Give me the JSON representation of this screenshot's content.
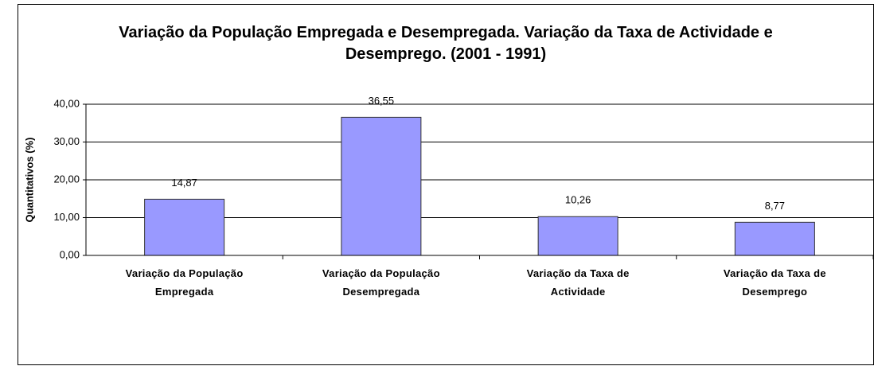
{
  "chart_data": {
    "type": "bar",
    "title": "Variação da População Empregada e Desempregada. Variação da Taxa de Actividade e Desemprego. (2001 - 1991)",
    "y_label": "Quantitativos (%)",
    "categories": [
      "Variação da População Empregada",
      "Variação da População Desempregada",
      "Variação da Taxa de Actividade",
      "Variação da Taxa de Desemprego"
    ],
    "values": [
      14.87,
      36.55,
      10.26,
      8.77
    ],
    "value_labels": [
      "14,87",
      "36,55",
      "10,26",
      "8,77"
    ],
    "color": "#9999ff",
    "ylim": [
      0,
      40
    ],
    "yticks": [
      {
        "value": 0,
        "label": "0,00"
      },
      {
        "value": 10,
        "label": "10,00"
      },
      {
        "value": 20,
        "label": "20,00"
      },
      {
        "value": 30,
        "label": "30,00"
      },
      {
        "value": 40,
        "label": "40,00"
      }
    ],
    "grid": true
  }
}
